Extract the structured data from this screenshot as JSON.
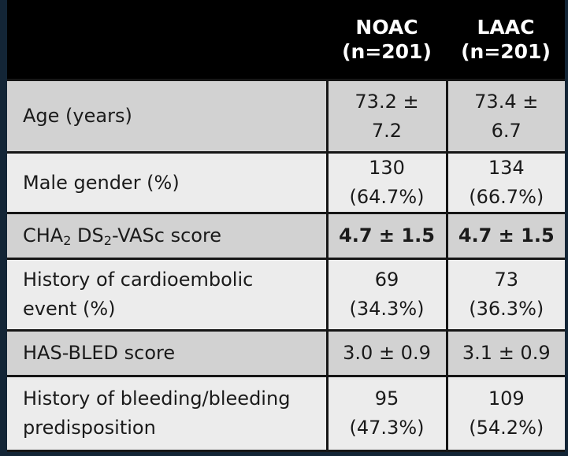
{
  "header": {
    "col2_line1": "NOAC",
    "col2_line2": "(n=201)",
    "col3_line1": "LAAC",
    "col3_line2": "(n=201)"
  },
  "rows": [
    {
      "label": "Age (years)",
      "noac_line1": "73.2 ±",
      "noac_line2": "7.2",
      "laac_line1": "73.4 ±",
      "laac_line2": "6.7"
    },
    {
      "label": "Male gender (%)",
      "noac_line1": "130",
      "noac_line2": "(64.7%)",
      "laac_line1": "134",
      "laac_line2": "(66.7%)"
    },
    {
      "label_part1": "CHA",
      "label_sub1": "2",
      "label_part2": " DS",
      "label_sub2": "2",
      "label_part3": "-VASc score",
      "noac": "4.7 ± 1.5",
      "laac": "4.7 ± 1.5"
    },
    {
      "label_line1": "History of cardioembolic",
      "label_line2": "event (%)",
      "noac_line1": "69",
      "noac_line2": "(34.3%)",
      "laac_line1": "73",
      "laac_line2": "(36.3%)"
    },
    {
      "label": "HAS-BLED score",
      "noac": "3.0 ± 0.9",
      "laac": "3.1 ± 0.9"
    },
    {
      "label_line1": "History of bleeding/bleeding",
      "label_line2": "predisposition",
      "noac_line1": "95",
      "noac_line2": "(47.3%)",
      "laac_line1": "109",
      "laac_line2": "(54.2%)"
    }
  ]
}
